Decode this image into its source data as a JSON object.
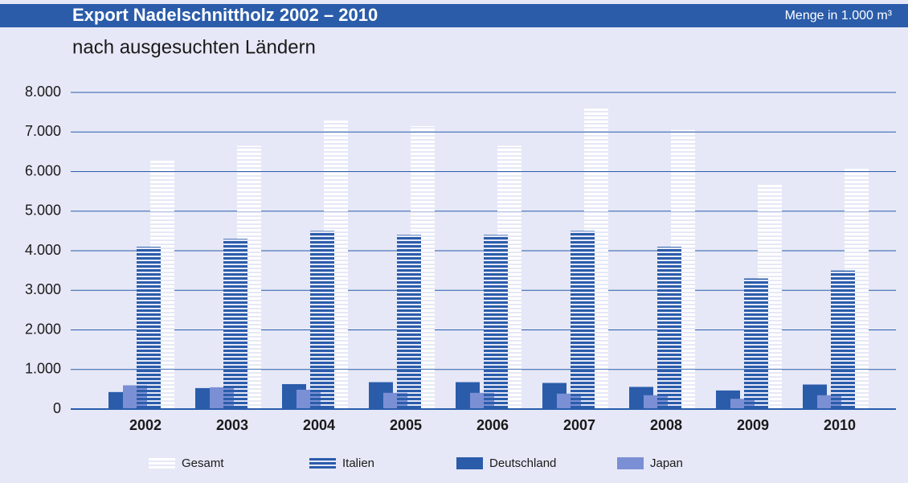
{
  "chart_data": {
    "type": "bar",
    "title": "Export Nadelschnittholz 2002 – 2010",
    "unit_note": "Menge in 1.000 m³",
    "subtitle": "nach ausgesuchten Ländern",
    "categories": [
      "2002",
      "2003",
      "2004",
      "2005",
      "2006",
      "2007",
      "2008",
      "2009",
      "2010"
    ],
    "series": [
      {
        "name": "Gesamt",
        "color": "#ffffff",
        "pattern": "striped",
        "values": [
          6300,
          6650,
          7300,
          7150,
          6650,
          7600,
          7050,
          5700,
          6100
        ]
      },
      {
        "name": "Italien",
        "color": "#2a5caa",
        "pattern": "striped",
        "values": [
          4100,
          4300,
          4500,
          4400,
          4400,
          4500,
          4100,
          3300,
          3500
        ]
      },
      {
        "name": "Deutschland",
        "color": "#2a5caa",
        "pattern": "solid",
        "values": [
          430,
          530,
          630,
          680,
          680,
          660,
          560,
          470,
          620
        ]
      },
      {
        "name": "Japan",
        "color": "#7b8fd4",
        "pattern": "solid",
        "values": [
          600,
          550,
          490,
          410,
          410,
          390,
          350,
          260,
          350
        ]
      }
    ],
    "ylim": [
      0,
      8000
    ],
    "yticks": [
      0,
      {
        "value": 1000,
        "label": "1.000"
      },
      {
        "value": 2000,
        "label": "2.000"
      },
      {
        "value": 3000,
        "label": "3.000"
      },
      {
        "value": 4000,
        "label": "4.000"
      },
      {
        "value": 5000,
        "label": "5.000"
      },
      {
        "value": 6000,
        "label": "6.000"
      },
      {
        "value": 7000,
        "label": "7.000"
      },
      {
        "value": 8000,
        "label": "8.000"
      }
    ],
    "grid": true,
    "legend": "bottom"
  }
}
